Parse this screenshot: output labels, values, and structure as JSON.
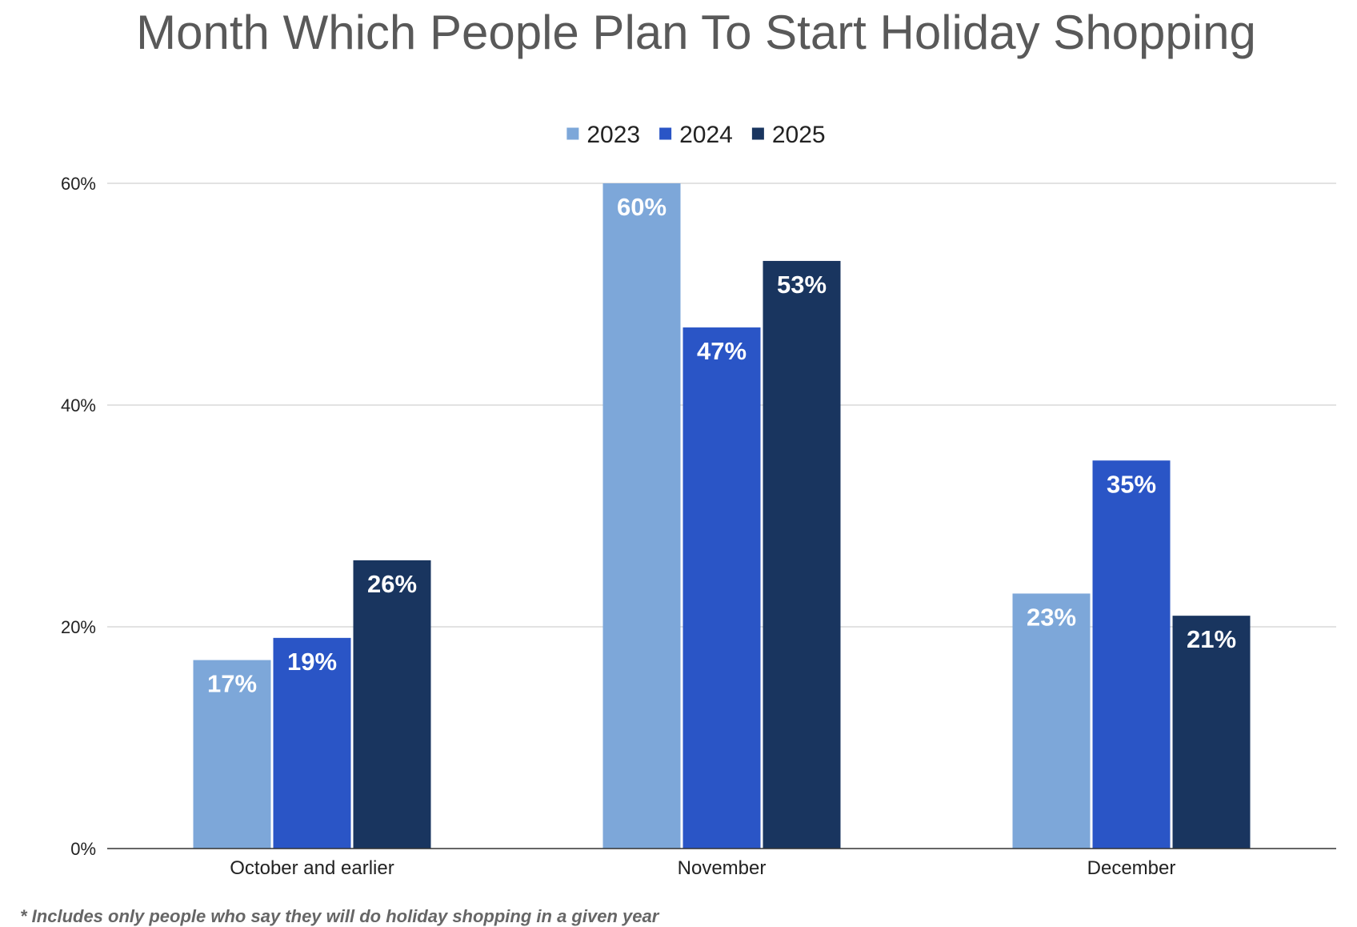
{
  "chart_data": {
    "type": "bar",
    "title": "Month Which People Plan To Start Holiday Shopping",
    "categories": [
      "October and earlier",
      "November",
      "December"
    ],
    "series": [
      {
        "name": "2023",
        "values": [
          17,
          60,
          23
        ],
        "labels": [
          "17%",
          "60%",
          "23%"
        ],
        "color": "#7da7d9"
      },
      {
        "name": "2024",
        "values": [
          19,
          47,
          35
        ],
        "labels": [
          "19%",
          "47%",
          "35%"
        ],
        "color": "#2a55c6"
      },
      {
        "name": "2025",
        "values": [
          26,
          53,
          21
        ],
        "labels": [
          "26%",
          "53%",
          "21%"
        ],
        "color": "#19355f"
      }
    ],
    "ylim": [
      0,
      60
    ],
    "yticks": [
      0,
      20,
      40,
      60
    ],
    "ytick_labels": [
      "0%",
      "20%",
      "40%",
      "60%"
    ],
    "grid": true,
    "legend": "top-center",
    "footnote": "* Includes only people who say they will do holiday shopping in a given year"
  }
}
